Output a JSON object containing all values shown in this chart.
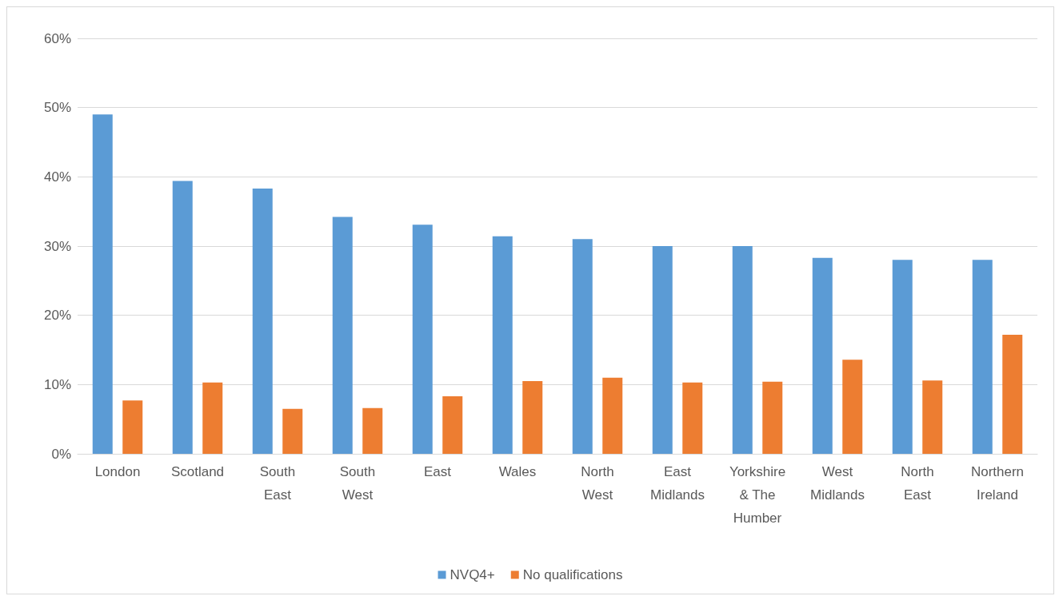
{
  "chart_data": {
    "type": "bar",
    "categories": [
      "London",
      "Scotland",
      "South\nEast",
      "South\nWest",
      "East",
      "Wales",
      "North\nWest",
      "East\nMidlands",
      "Yorkshire\n& The\nHumber",
      "West\nMidlands",
      "North\nEast",
      "Northern\nIreland"
    ],
    "series": [
      {
        "name": "NVQ4+",
        "color": "#5b9bd5",
        "values": [
          49.0,
          39.4,
          38.3,
          34.2,
          33.1,
          31.4,
          31.0,
          30.0,
          30.0,
          28.3,
          28.0,
          28.0
        ]
      },
      {
        "name": "No qualifications",
        "color": "#ed7d31",
        "values": [
          7.7,
          10.3,
          6.5,
          6.6,
          8.3,
          10.5,
          11.0,
          10.3,
          10.4,
          13.6,
          10.6,
          17.2
        ]
      }
    ],
    "ylim": [
      0,
      60
    ],
    "yticks": [
      {
        "value": 0,
        "label": "0%"
      },
      {
        "value": 10,
        "label": "10%"
      },
      {
        "value": 20,
        "label": "20%"
      },
      {
        "value": 30,
        "label": "30%"
      },
      {
        "value": 40,
        "label": "40%"
      },
      {
        "value": 50,
        "label": "50%"
      },
      {
        "value": 60,
        "label": "60%"
      }
    ],
    "grid": "y",
    "legend": "bottom"
  }
}
